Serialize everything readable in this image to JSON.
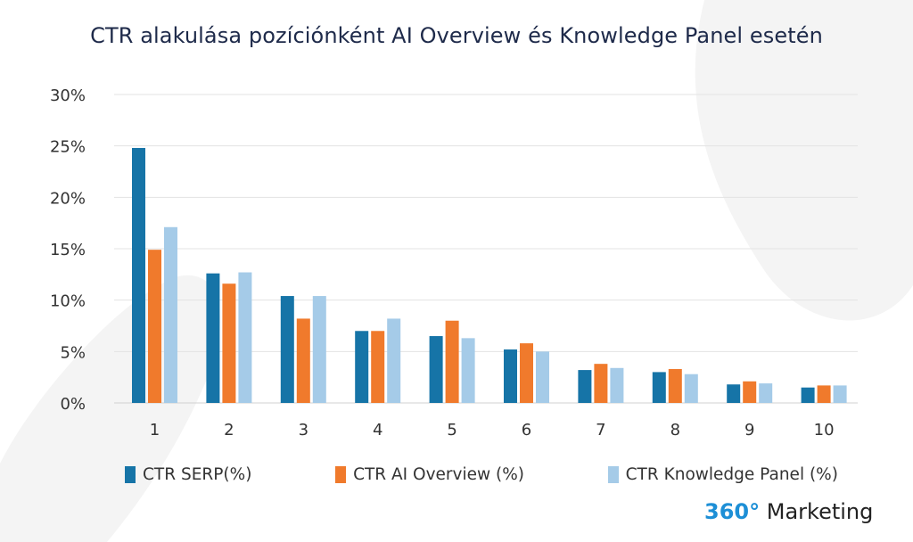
{
  "title": "CTR alakulása pozíciónként AI Overview és Knowledge Panel esetén",
  "brand": {
    "highlight": "360°",
    "name": "Marketing"
  },
  "colors": {
    "serp": "#1674a7",
    "ai": "#f07a2c",
    "kp": "#a5cbe8",
    "grid": "#e3e3e3",
    "accent": "#1d8fd6"
  },
  "chart_data": {
    "type": "bar",
    "title": "CTR alakulása pozíciónként AI Overview és Knowledge Panel esetén",
    "xlabel": "",
    "ylabel": "",
    "categories": [
      "1",
      "2",
      "3",
      "4",
      "5",
      "6",
      "7",
      "8",
      "9",
      "10"
    ],
    "ylim": [
      0,
      30
    ],
    "yticks": [
      0,
      5,
      10,
      15,
      20,
      25,
      30
    ],
    "ytick_labels": [
      "0%",
      "5%",
      "10%",
      "15%",
      "20%",
      "25%",
      "30%"
    ],
    "grid": true,
    "legend_position": "bottom",
    "series": [
      {
        "name": "CTR SERP(%)",
        "color_key": "serp",
        "values": [
          24.8,
          12.6,
          10.4,
          7.0,
          6.5,
          5.2,
          3.2,
          3.0,
          1.8,
          1.5
        ]
      },
      {
        "name": "CTR AI Overview (%)",
        "color_key": "ai",
        "values": [
          14.9,
          11.6,
          8.2,
          7.0,
          8.0,
          5.8,
          3.8,
          3.3,
          2.1,
          1.7
        ]
      },
      {
        "name": "CTR Knowledge Panel (%)",
        "color_key": "kp",
        "values": [
          17.1,
          12.7,
          10.4,
          8.2,
          6.3,
          5.0,
          3.4,
          2.8,
          1.9,
          1.7
        ]
      }
    ]
  }
}
